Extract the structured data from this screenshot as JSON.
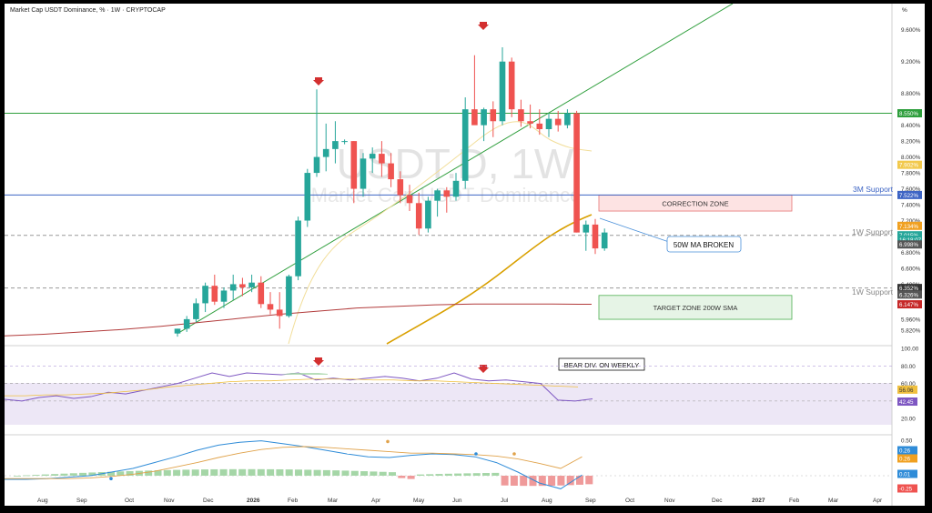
{
  "header": {
    "title": "Market Cap USDT Dominance, % · 1W · CRYPTOCAP",
    "percent_symbol": "%"
  },
  "watermark": {
    "ticker": "USDT.D, 1W",
    "name": "Market Cap USDT Dominance"
  },
  "colors": {
    "up": "#26a69a",
    "down": "#ef5350",
    "resistance_line": "#2e9e3c",
    "support_blue": "#3d64c4",
    "sma50": "#d9a000",
    "sma200": "#b23b3b",
    "rsi_band": "#ede7f6",
    "macd_line": "#2f8cd8",
    "signal_line": "#e0a24a"
  },
  "price_axis": {
    "ticks": [
      "9.600%",
      "9.200%",
      "8.800%",
      "8.400%",
      "8.200%",
      "8.000%",
      "7.800%",
      "7.600%",
      "7.400%",
      "7.200%",
      "6.800%",
      "6.600%",
      "6.400%",
      "5.960%",
      "5.820%"
    ],
    "tick_values": [
      9.6,
      9.2,
      8.8,
      8.4,
      8.2,
      8.0,
      7.8,
      7.6,
      7.4,
      7.2,
      6.8,
      6.6,
      6.4,
      5.96,
      5.82
    ],
    "badges": [
      {
        "label": "8.550%",
        "value": 8.55,
        "color": "#2e9e3c"
      },
      {
        "label": "7.902%",
        "value": 7.902,
        "color": "#f2c94c"
      },
      {
        "label": "7.522%",
        "value": 7.522,
        "color": "#3d64c4"
      },
      {
        "label": "7.134%",
        "value": 7.134,
        "color": "#f0a020"
      },
      {
        "label": "7.015%",
        "value": 7.015,
        "color": "#26a69a"
      },
      {
        "label": "16:18:07",
        "value": 6.96,
        "color": "#26a69a"
      },
      {
        "label": "6.998%",
        "value": 6.9,
        "color": "#555555"
      },
      {
        "label": "6.352%",
        "value": 6.352,
        "color": "#333333"
      },
      {
        "label": "6.326%",
        "value": 6.27,
        "color": "#555555"
      },
      {
        "label": "6.147%",
        "value": 6.147,
        "color": "#c62828"
      }
    ]
  },
  "time_axis": {
    "labels": [
      "Aug",
      "Sep",
      "Oct",
      "Nov",
      "Dec",
      "2026",
      "Feb",
      "Mar",
      "Apr",
      "May",
      "Jun",
      "Jul",
      "Aug",
      "Sep",
      "Oct",
      "Nov",
      "Dec",
      "2027",
      "Feb",
      "Mar",
      "Apr"
    ]
  },
  "annotations": {
    "support_3m": "3M Support",
    "support_1w_top": "1W Support",
    "support_1w_bottom": "1W Support",
    "correction_zone": "CORRECTION ZONE",
    "target_zone": "TARGET ZONE 200W SMA",
    "ma_broken": "50W MA BROKEN",
    "bear_div": "BEAR DIV. ON WEEKLY"
  },
  "rsi_axis": {
    "ticks": [
      "100.00",
      "80.00",
      "60.00",
      "40.00",
      "20.00"
    ],
    "badges": [
      {
        "label": "56.06",
        "color": "#f0c040"
      },
      {
        "label": "42.45",
        "color": "#7e57c2"
      }
    ]
  },
  "macd_axis": {
    "ticks": [
      "0.50",
      "0.00"
    ],
    "badges": [
      {
        "label": "0.26",
        "color": "#2f8cd8"
      },
      {
        "label": "0.26",
        "color": "#f0a020"
      },
      {
        "label": "0.01",
        "color": "#2f8cd8"
      },
      {
        "label": "-0.25",
        "color": "#ef5350"
      }
    ]
  },
  "chart_data": {
    "type": "candlestick",
    "title": "Market Cap USDT Dominance, % · 1W · CRYPTOCAP",
    "ylim": [
      5.6,
      9.7
    ],
    "weekly_candles": [
      {
        "o": 5.78,
        "h": 5.84,
        "l": 5.74,
        "c": 5.84
      },
      {
        "o": 5.84,
        "h": 6.0,
        "l": 5.8,
        "c": 5.96
      },
      {
        "o": 5.96,
        "h": 6.22,
        "l": 5.92,
        "c": 6.16
      },
      {
        "o": 6.16,
        "h": 6.42,
        "l": 6.05,
        "c": 6.38
      },
      {
        "o": 6.38,
        "h": 6.52,
        "l": 6.14,
        "c": 6.18
      },
      {
        "o": 6.18,
        "h": 6.36,
        "l": 6.1,
        "c": 6.32
      },
      {
        "o": 6.32,
        "h": 6.52,
        "l": 6.2,
        "c": 6.4
      },
      {
        "o": 6.4,
        "h": 6.48,
        "l": 6.25,
        "c": 6.36
      },
      {
        "o": 6.36,
        "h": 6.52,
        "l": 6.3,
        "c": 6.42
      },
      {
        "o": 6.42,
        "h": 6.5,
        "l": 6.1,
        "c": 6.15
      },
      {
        "o": 6.15,
        "h": 6.3,
        "l": 6.02,
        "c": 6.08
      },
      {
        "o": 6.08,
        "h": 6.3,
        "l": 5.84,
        "c": 6.0
      },
      {
        "o": 6.0,
        "h": 6.52,
        "l": 5.98,
        "c": 6.5
      },
      {
        "o": 6.5,
        "h": 7.25,
        "l": 6.45,
        "c": 7.2
      },
      {
        "o": 7.2,
        "h": 7.85,
        "l": 7.12,
        "c": 7.8
      },
      {
        "o": 7.8,
        "h": 8.85,
        "l": 7.75,
        "c": 8.0
      },
      {
        "o": 8.0,
        "h": 8.42,
        "l": 7.82,
        "c": 8.1
      },
      {
        "o": 8.1,
        "h": 8.45,
        "l": 7.92,
        "c": 8.2
      },
      {
        "o": 8.2,
        "h": 8.22,
        "l": 8.16,
        "c": 8.2
      },
      {
        "o": 8.2,
        "h": 8.2,
        "l": 7.42,
        "c": 7.6
      },
      {
        "o": 7.6,
        "h": 8.05,
        "l": 7.5,
        "c": 7.98
      },
      {
        "o": 7.98,
        "h": 8.12,
        "l": 7.8,
        "c": 8.04
      },
      {
        "o": 8.04,
        "h": 8.2,
        "l": 7.75,
        "c": 7.92
      },
      {
        "o": 7.92,
        "h": 8.05,
        "l": 7.62,
        "c": 7.72
      },
      {
        "o": 7.72,
        "h": 7.82,
        "l": 7.42,
        "c": 7.52
      },
      {
        "o": 7.52,
        "h": 7.65,
        "l": 7.32,
        "c": 7.42
      },
      {
        "o": 7.42,
        "h": 7.55,
        "l": 7.02,
        "c": 7.1
      },
      {
        "o": 7.1,
        "h": 7.5,
        "l": 7.05,
        "c": 7.45
      },
      {
        "o": 7.45,
        "h": 7.6,
        "l": 7.25,
        "c": 7.58
      },
      {
        "o": 7.58,
        "h": 7.62,
        "l": 7.3,
        "c": 7.5
      },
      {
        "o": 7.5,
        "h": 7.8,
        "l": 7.45,
        "c": 7.7
      },
      {
        "o": 7.7,
        "h": 8.75,
        "l": 7.6,
        "c": 8.6
      },
      {
        "o": 8.6,
        "h": 9.28,
        "l": 8.45,
        "c": 8.4
      },
      {
        "o": 8.4,
        "h": 8.62,
        "l": 8.2,
        "c": 8.6
      },
      {
        "o": 8.6,
        "h": 8.7,
        "l": 8.25,
        "c": 8.45
      },
      {
        "o": 8.45,
        "h": 9.38,
        "l": 8.4,
        "c": 9.2
      },
      {
        "o": 9.2,
        "h": 9.25,
        "l": 8.5,
        "c": 8.6
      },
      {
        "o": 8.6,
        "h": 8.72,
        "l": 8.38,
        "c": 8.45
      },
      {
        "o": 8.45,
        "h": 8.66,
        "l": 8.36,
        "c": 8.42
      },
      {
        "o": 8.42,
        "h": 8.6,
        "l": 8.28,
        "c": 8.35
      },
      {
        "o": 8.35,
        "h": 8.55,
        "l": 8.25,
        "c": 8.48
      },
      {
        "o": 8.48,
        "h": 8.58,
        "l": 8.32,
        "c": 8.4
      },
      {
        "o": 8.4,
        "h": 8.6,
        "l": 8.36,
        "c": 8.55
      },
      {
        "o": 8.55,
        "h": 8.58,
        "l": 7.05,
        "c": 7.05
      },
      {
        "o": 7.05,
        "h": 7.2,
        "l": 6.82,
        "c": 7.15
      },
      {
        "o": 7.15,
        "h": 7.22,
        "l": 6.78,
        "c": 6.85
      },
      {
        "o": 6.85,
        "h": 7.1,
        "l": 6.82,
        "c": 7.05
      }
    ],
    "levels": [
      {
        "value": 8.55,
        "style": "solid",
        "color": "#2e9e3c"
      },
      {
        "value": 7.522,
        "style": "solid",
        "color": "#3d64c4"
      },
      {
        "value": 7.015,
        "style": "dashed",
        "color": "#999999"
      },
      {
        "value": 6.352,
        "style": "dashed",
        "color": "#999999"
      }
    ],
    "zones": [
      {
        "name": "correction",
        "top": 7.52,
        "bottom": 7.32
      },
      {
        "name": "target",
        "top": 6.35,
        "bottom": 6.05
      }
    ],
    "sma50": [
      7.9,
      7.86,
      7.8,
      7.75,
      7.68,
      7.6,
      7.52,
      7.42,
      7.3,
      7.2,
      7.1,
      6.95,
      6.8,
      6.6,
      6.35,
      6.1,
      5.8
    ],
    "sma200": [
      5.75,
      5.77,
      5.8,
      5.83,
      5.87,
      5.92,
      5.97,
      6.02,
      6.06,
      6.1,
      6.12,
      6.14,
      6.15,
      6.15,
      6.15,
      6.147
    ],
    "rsi": [
      42,
      40,
      44,
      46,
      43,
      45,
      50,
      48,
      52,
      56,
      60,
      66,
      72,
      68,
      72,
      71,
      70,
      72,
      64,
      66,
      64,
      66,
      68,
      66,
      63,
      66,
      72,
      65,
      63,
      64,
      62,
      60,
      41,
      40,
      42.45
    ],
    "rsi_ma": [
      46,
      46,
      47,
      47,
      48,
      49,
      51,
      53,
      56,
      58,
      60,
      62,
      63,
      63,
      64,
      65,
      65,
      65,
      64,
      64,
      63,
      63,
      62,
      61,
      60,
      59,
      58,
      57,
      56.06
    ],
    "macd": [
      -0.05,
      -0.05,
      -0.04,
      -0.02,
      0.0,
      0.05,
      0.1,
      0.18,
      0.26,
      0.35,
      0.42,
      0.46,
      0.48,
      0.44,
      0.4,
      0.35,
      0.3,
      0.26,
      0.25,
      0.28,
      0.3,
      0.29,
      0.26,
      0.18,
      0.05,
      -0.1,
      -0.18,
      0.01
    ],
    "signal": [
      -0.04,
      -0.04,
      -0.04,
      -0.04,
      -0.03,
      -0.01,
      0.02,
      0.06,
      0.12,
      0.18,
      0.25,
      0.31,
      0.36,
      0.39,
      0.4,
      0.39,
      0.37,
      0.35,
      0.33,
      0.31,
      0.31,
      0.3,
      0.29,
      0.27,
      0.23,
      0.17,
      0.1,
      0.26
    ]
  }
}
